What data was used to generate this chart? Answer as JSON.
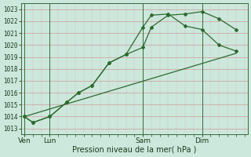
{
  "background_color": "#cce8dd",
  "grid_major_color": "#cc9999",
  "grid_minor_color": "#ddbbbb",
  "line_color": "#2d6a2d",
  "ylim": [
    1012.5,
    1023.5
  ],
  "yticks": [
    1013,
    1014,
    1015,
    1016,
    1017,
    1018,
    1019,
    1020,
    1021,
    1022,
    1023
  ],
  "xlabel": "Pression niveau de la mer( hPa )",
  "xtick_labels": [
    "Ven",
    "Lun",
    "Sam",
    "Dim"
  ],
  "xtick_positions": [
    0,
    1.5,
    7,
    10.5
  ],
  "series1_x": [
    0,
    0.5,
    1.5,
    2.5,
    3.2,
    4.0,
    5.0,
    6.0,
    7.0,
    7.5,
    8.5,
    9.5,
    10.5,
    11.5,
    12.5
  ],
  "series1_y": [
    1014.0,
    1013.5,
    1014.0,
    1015.2,
    1016.0,
    1016.6,
    1018.5,
    1019.2,
    1019.8,
    1021.5,
    1022.5,
    1022.6,
    1022.8,
    1022.2,
    1021.3
  ],
  "series2_x": [
    0,
    0.5,
    1.5,
    2.5,
    3.2,
    4.0,
    5.0,
    6.0,
    7.0,
    7.5,
    8.5,
    9.5,
    10.5,
    11.5,
    12.5
  ],
  "series2_y": [
    1014.0,
    1013.5,
    1014.0,
    1015.2,
    1016.0,
    1016.6,
    1018.5,
    1019.2,
    1021.5,
    1022.5,
    1022.6,
    1021.6,
    1021.3,
    1020.0,
    1019.5
  ],
  "series3_x": [
    0,
    12.5
  ],
  "series3_y": [
    1014.0,
    1019.3
  ],
  "vline_positions": [
    0,
    1.5,
    7,
    10.5
  ],
  "xlim": [
    -0.2,
    13.2
  ]
}
